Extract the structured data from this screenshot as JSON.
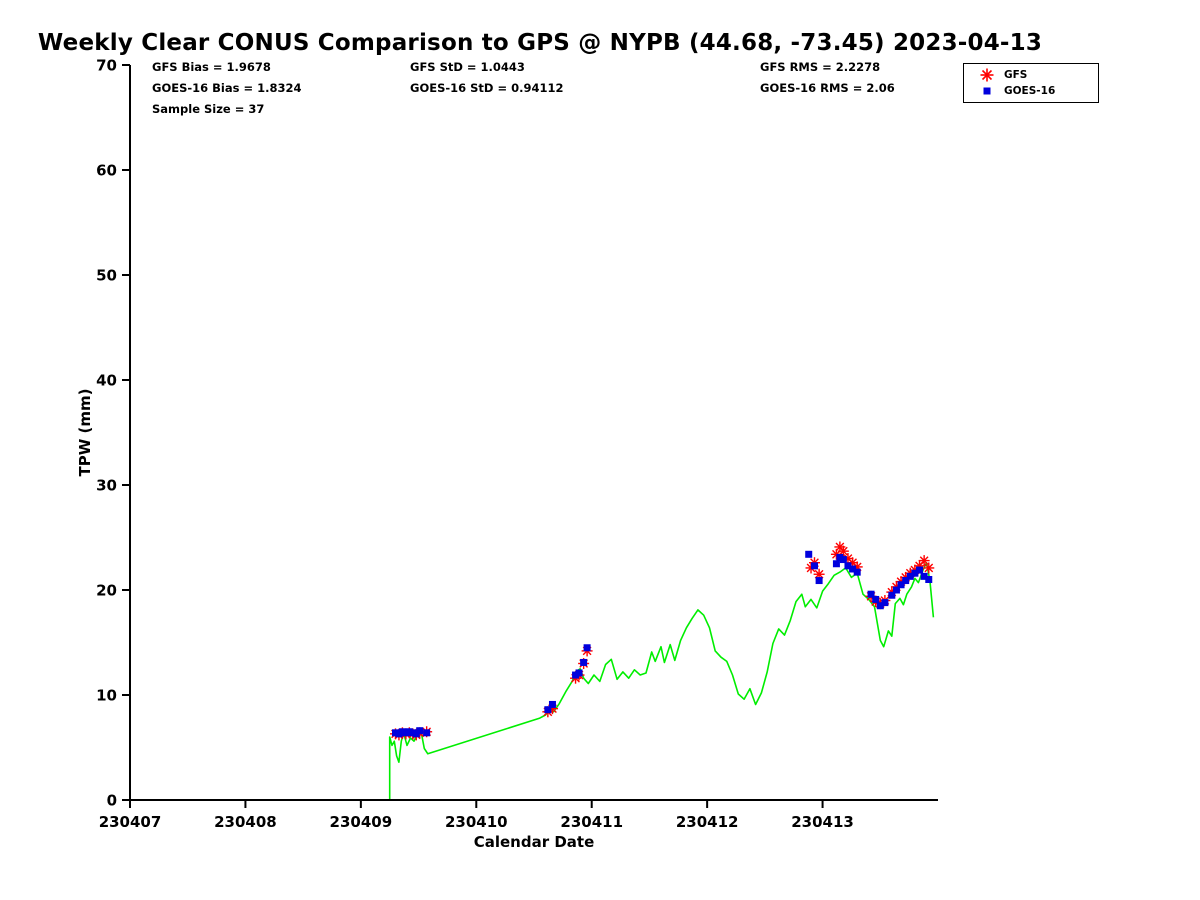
{
  "stats": {
    "col1": [
      "GFS Bias = 1.9678",
      "GOES-16 Bias = 1.8324",
      "Sample Size = 37"
    ],
    "col2": [
      "GFS StD = 1.0443",
      "GOES-16 StD = 0.94112"
    ],
    "col3": [
      "GFS RMS = 2.2278",
      "GOES-16 RMS = 2.06"
    ]
  },
  "chart_data": {
    "type": "line",
    "title": "Weekly Clear CONUS Comparison to GPS @ NYPB (44.68, -73.45) 2023-04-13",
    "xlabel": "Calendar Date",
    "ylabel": "TPW (mm)",
    "xlim": [
      230407,
      230414
    ],
    "ylim": [
      0,
      70
    ],
    "xticks": [
      230407,
      230408,
      230409,
      230410,
      230411,
      230412,
      230413
    ],
    "yticks": [
      0,
      10,
      20,
      30,
      40,
      50,
      60,
      70
    ],
    "grid": false,
    "legend_position": "top-right",
    "colors": {
      "gps_line": "#00ee00",
      "gfs": "#ff0000",
      "goes16": "#0000dd",
      "axis": "#000000"
    },
    "series": [
      {
        "name": "GPS",
        "plot": "line",
        "color": "#00ee00",
        "points": [
          [
            230409.25,
            0
          ],
          [
            230409.25,
            6.0
          ],
          [
            230409.27,
            5.2
          ],
          [
            230409.29,
            5.6
          ],
          [
            230409.31,
            4.2
          ],
          [
            230409.33,
            3.6
          ],
          [
            230409.35,
            5.6
          ],
          [
            230409.37,
            6.4
          ],
          [
            230409.4,
            5.2
          ],
          [
            230409.43,
            5.9
          ],
          [
            230409.46,
            5.6
          ],
          [
            230409.49,
            6.3
          ],
          [
            230409.52,
            6.6
          ],
          [
            230409.55,
            4.9
          ],
          [
            230409.58,
            4.4
          ],
          [
            230410.55,
            7.8
          ],
          [
            230410.6,
            8.1
          ],
          [
            230410.63,
            8.5
          ],
          [
            230410.67,
            8.4
          ],
          [
            230410.72,
            9.2
          ],
          [
            230410.78,
            10.4
          ],
          [
            230410.83,
            11.3
          ],
          [
            230410.87,
            12.3
          ],
          [
            230410.9,
            12.5
          ],
          [
            230410.93,
            11.6
          ],
          [
            230410.97,
            11.1
          ],
          [
            230411.02,
            11.9
          ],
          [
            230411.07,
            11.3
          ],
          [
            230411.12,
            12.9
          ],
          [
            230411.17,
            13.4
          ],
          [
            230411.22,
            11.5
          ],
          [
            230411.27,
            12.2
          ],
          [
            230411.32,
            11.6
          ],
          [
            230411.37,
            12.4
          ],
          [
            230411.42,
            11.9
          ],
          [
            230411.47,
            12.1
          ],
          [
            230411.52,
            14.1
          ],
          [
            230411.55,
            13.2
          ],
          [
            230411.6,
            14.6
          ],
          [
            230411.63,
            13.1
          ],
          [
            230411.68,
            14.8
          ],
          [
            230411.72,
            13.3
          ],
          [
            230411.77,
            15.2
          ],
          [
            230411.82,
            16.4
          ],
          [
            230411.87,
            17.3
          ],
          [
            230411.92,
            18.1
          ],
          [
            230411.97,
            17.6
          ],
          [
            230412.02,
            16.4
          ],
          [
            230412.07,
            14.2
          ],
          [
            230412.12,
            13.6
          ],
          [
            230412.17,
            13.2
          ],
          [
            230412.22,
            11.9
          ],
          [
            230412.27,
            10.1
          ],
          [
            230412.32,
            9.6
          ],
          [
            230412.37,
            10.6
          ],
          [
            230412.42,
            9.1
          ],
          [
            230412.47,
            10.2
          ],
          [
            230412.52,
            12.2
          ],
          [
            230412.57,
            14.9
          ],
          [
            230412.62,
            16.3
          ],
          [
            230412.67,
            15.7
          ],
          [
            230412.72,
            17.1
          ],
          [
            230412.77,
            18.9
          ],
          [
            230412.82,
            19.6
          ],
          [
            230412.85,
            18.4
          ],
          [
            230412.9,
            19.1
          ],
          [
            230412.95,
            18.3
          ],
          [
            230413.0,
            19.9
          ],
          [
            230413.05,
            20.6
          ],
          [
            230413.1,
            21.4
          ],
          [
            230413.15,
            21.7
          ],
          [
            230413.2,
            22.1
          ],
          [
            230413.25,
            21.2
          ],
          [
            230413.3,
            21.6
          ],
          [
            230413.35,
            19.6
          ],
          [
            230413.4,
            19.1
          ],
          [
            230413.45,
            18.4
          ],
          [
            230413.5,
            15.2
          ],
          [
            230413.53,
            14.6
          ],
          [
            230413.57,
            16.1
          ],
          [
            230413.6,
            15.6
          ],
          [
            230413.63,
            18.7
          ],
          [
            230413.67,
            19.2
          ],
          [
            230413.7,
            18.6
          ],
          [
            230413.73,
            19.6
          ],
          [
            230413.77,
            20.3
          ],
          [
            230413.8,
            21.1
          ],
          [
            230413.83,
            20.7
          ],
          [
            230413.87,
            21.9
          ],
          [
            230413.9,
            22.6
          ],
          [
            230413.93,
            20.9
          ],
          [
            230413.96,
            17.4
          ]
        ]
      },
      {
        "name": "GFS",
        "plot": "scatter",
        "marker": "asterisk",
        "color": "#ff0000",
        "points": [
          [
            230409.3,
            6.3
          ],
          [
            230409.33,
            6.2
          ],
          [
            230409.36,
            6.4
          ],
          [
            230409.39,
            6.3
          ],
          [
            230409.42,
            6.4
          ],
          [
            230409.45,
            6.3
          ],
          [
            230409.48,
            6.2
          ],
          [
            230409.51,
            6.4
          ],
          [
            230409.57,
            6.5
          ],
          [
            230410.62,
            8.4
          ],
          [
            230410.66,
            8.7
          ],
          [
            230410.86,
            11.6
          ],
          [
            230410.89,
            11.9
          ],
          [
            230410.93,
            13.0
          ],
          [
            230410.96,
            14.2
          ],
          [
            230412.9,
            22.1
          ],
          [
            230412.93,
            22.6
          ],
          [
            230412.97,
            21.5
          ],
          [
            230413.12,
            23.4
          ],
          [
            230413.15,
            24.1
          ],
          [
            230413.18,
            23.7
          ],
          [
            230413.22,
            23.0
          ],
          [
            230413.26,
            22.6
          ],
          [
            230413.3,
            22.2
          ],
          [
            230413.42,
            19.4
          ],
          [
            230413.46,
            18.9
          ],
          [
            230413.5,
            18.7
          ],
          [
            230413.54,
            19.0
          ],
          [
            230413.6,
            19.8
          ],
          [
            230413.64,
            20.3
          ],
          [
            230413.68,
            20.8
          ],
          [
            230413.72,
            21.2
          ],
          [
            230413.76,
            21.6
          ],
          [
            230413.8,
            21.9
          ],
          [
            230413.84,
            22.3
          ],
          [
            230413.88,
            22.8
          ],
          [
            230413.92,
            22.1
          ]
        ]
      },
      {
        "name": "GOES-16",
        "plot": "scatter",
        "marker": "square",
        "color": "#0000dd",
        "points": [
          [
            230409.3,
            6.4
          ],
          [
            230409.33,
            6.3
          ],
          [
            230409.36,
            6.5
          ],
          [
            230409.39,
            6.4
          ],
          [
            230409.42,
            6.5
          ],
          [
            230409.45,
            6.4
          ],
          [
            230409.48,
            6.3
          ],
          [
            230409.51,
            6.6
          ],
          [
            230409.57,
            6.4
          ],
          [
            230410.62,
            8.6
          ],
          [
            230410.66,
            9.1
          ],
          [
            230410.86,
            11.9
          ],
          [
            230410.89,
            12.1
          ],
          [
            230410.93,
            13.1
          ],
          [
            230410.96,
            14.5
          ],
          [
            230412.88,
            23.4
          ],
          [
            230412.93,
            22.3
          ],
          [
            230412.97,
            20.9
          ],
          [
            230413.12,
            22.5
          ],
          [
            230413.15,
            23.1
          ],
          [
            230413.18,
            22.9
          ],
          [
            230413.22,
            22.3
          ],
          [
            230413.26,
            22.0
          ],
          [
            230413.3,
            21.7
          ],
          [
            230413.42,
            19.6
          ],
          [
            230413.46,
            19.1
          ],
          [
            230413.5,
            18.5
          ],
          [
            230413.54,
            18.8
          ],
          [
            230413.6,
            19.5
          ],
          [
            230413.64,
            20.0
          ],
          [
            230413.68,
            20.5
          ],
          [
            230413.72,
            20.9
          ],
          [
            230413.76,
            21.3
          ],
          [
            230413.8,
            21.6
          ],
          [
            230413.84,
            21.9
          ],
          [
            230413.88,
            21.3
          ],
          [
            230413.92,
            21.0
          ]
        ]
      }
    ]
  }
}
